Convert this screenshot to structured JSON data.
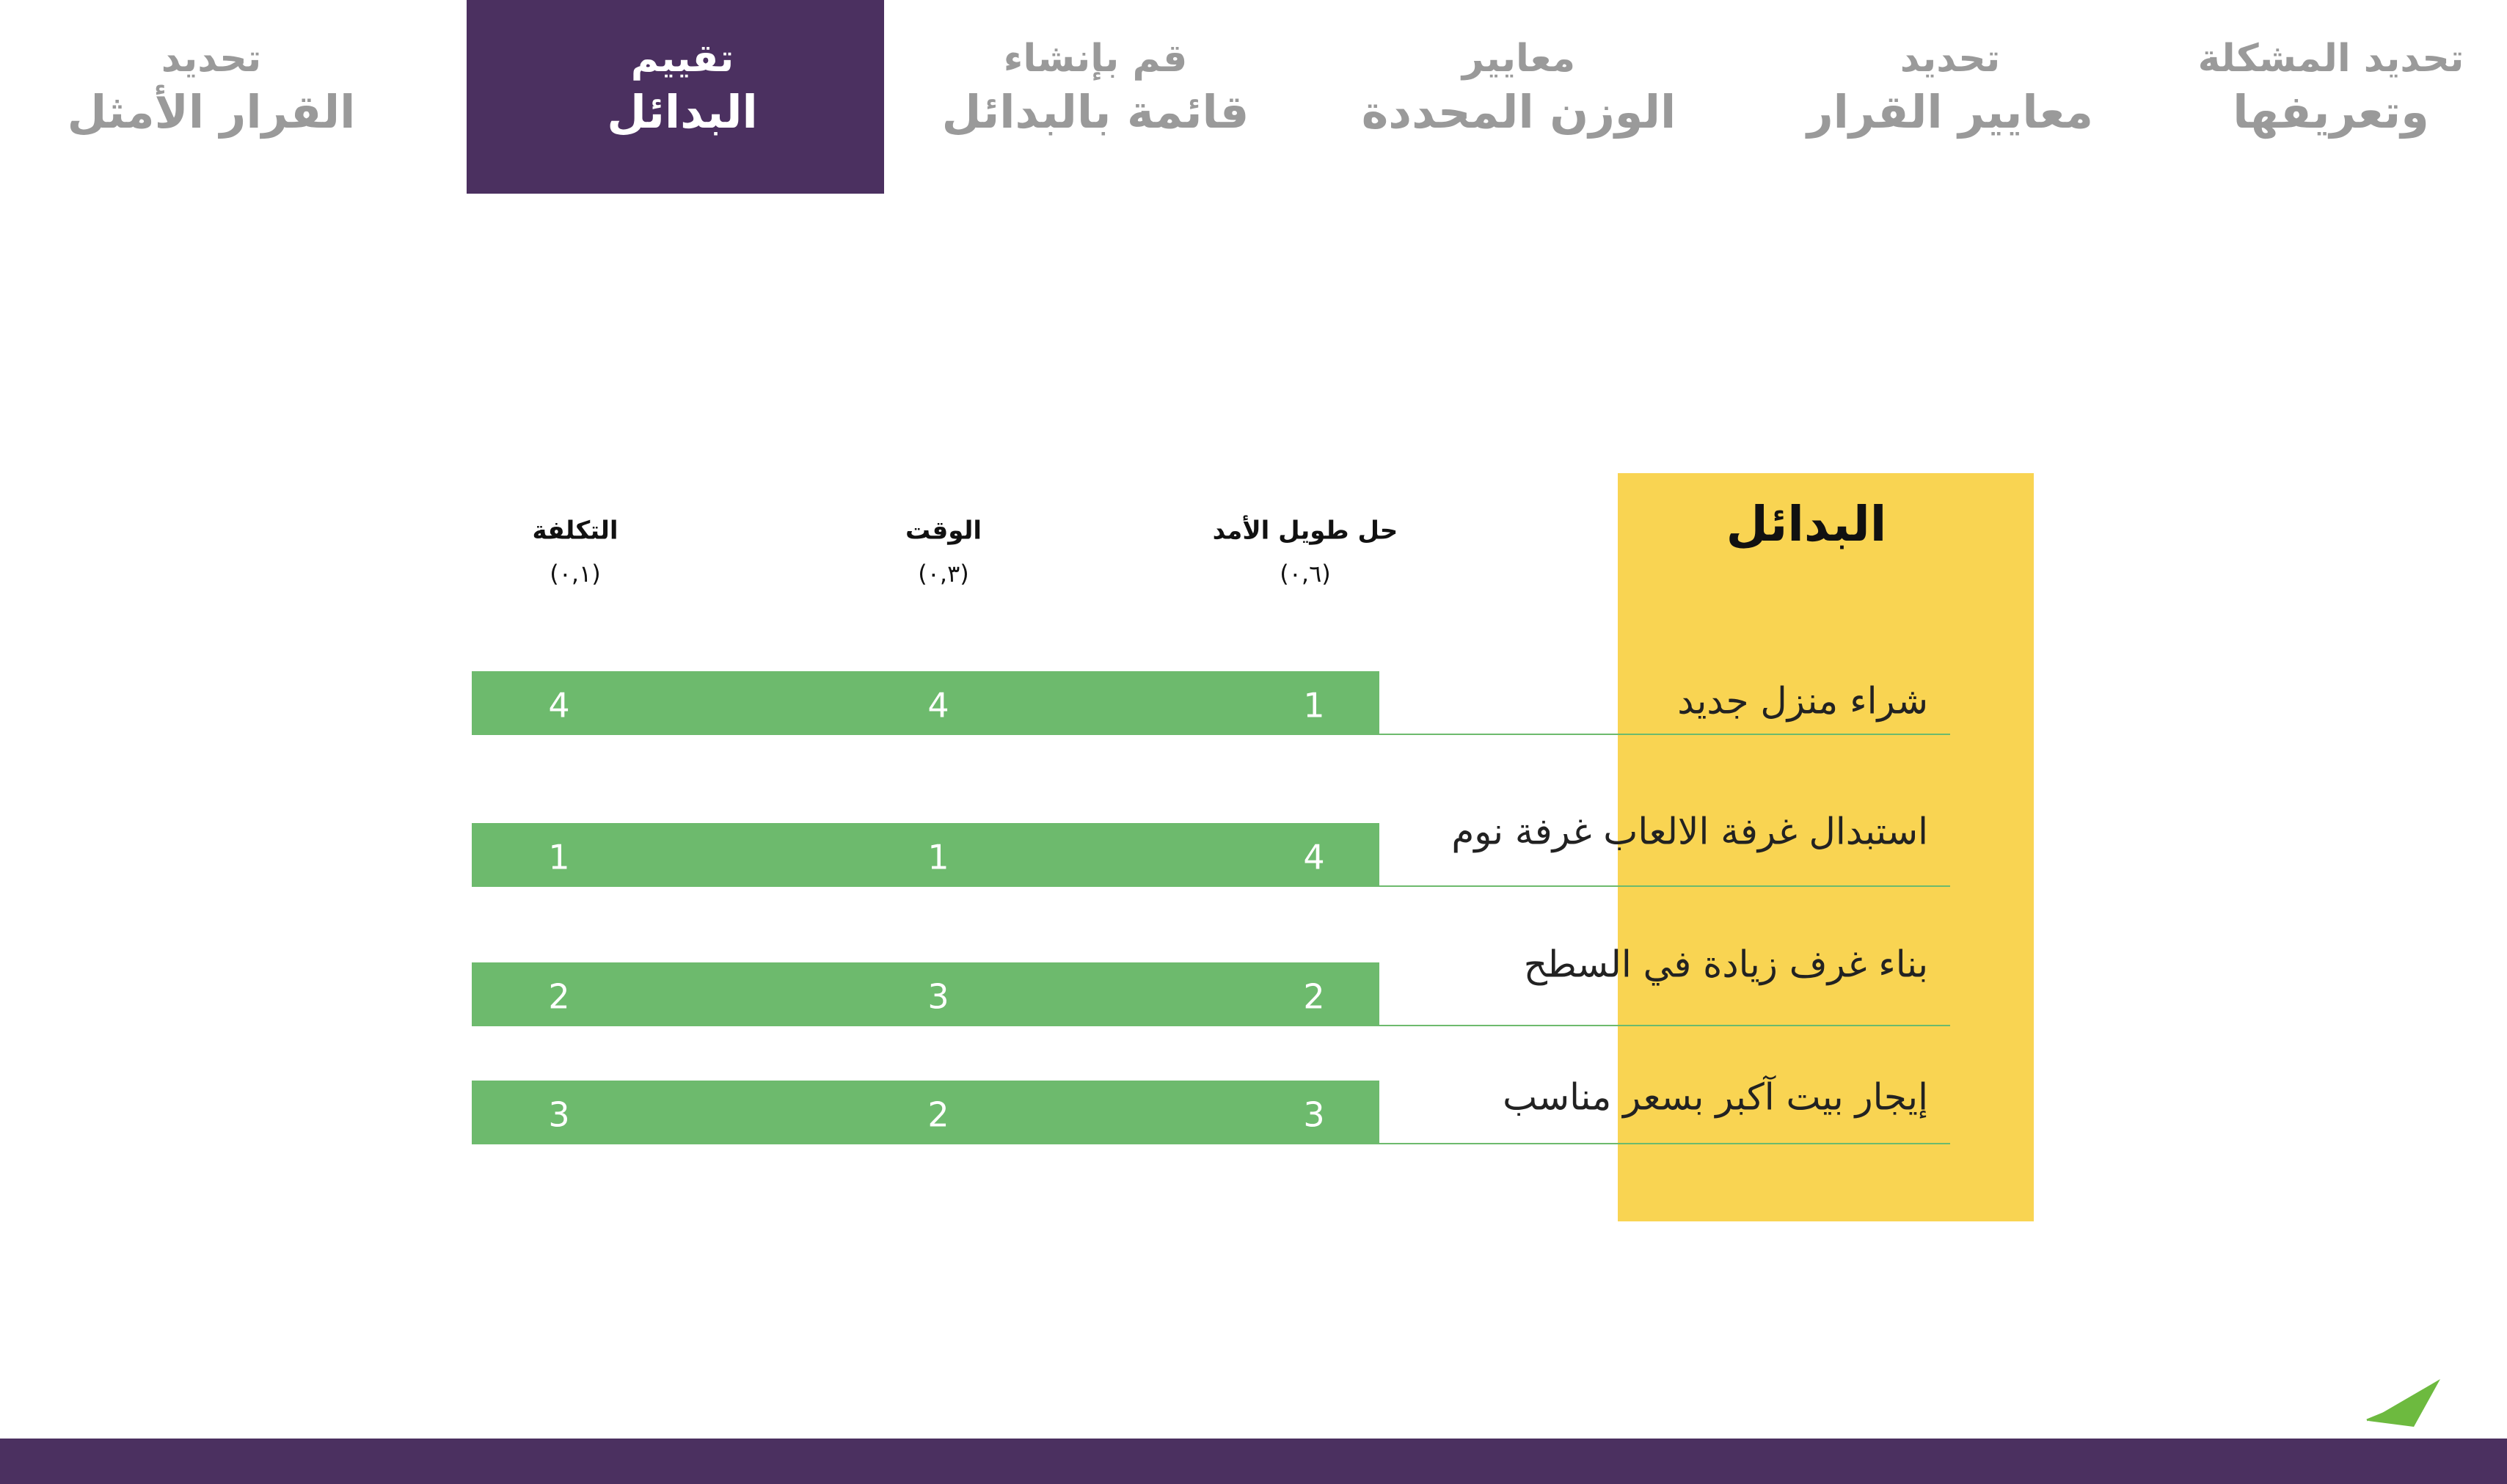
{
  "nav": {
    "steps": [
      [
        "تحديد المشكلة",
        "وتعريفها"
      ],
      [
        "تحديد",
        "معايير القرار"
      ],
      [
        "معايير",
        "الوزن المحددة"
      ],
      [
        "قم بإنشاء",
        "قائمة بالبدائل"
      ],
      [
        "تقييم",
        "البدائل"
      ],
      [
        "تحديد",
        "القرار الأمثل"
      ]
    ]
  },
  "table": {
    "title": "البدائل",
    "columns": [
      {
        "name": "حل طويل الأمد",
        "weight": "(٠,٦)"
      },
      {
        "name": "الوقت",
        "weight": "(٠,٣)"
      },
      {
        "name": "التكلفة",
        "weight": "(٠,١)"
      }
    ],
    "rows": [
      {
        "name": "شراء منزل جديد",
        "scores": [
          1,
          4,
          4
        ]
      },
      {
        "name": "استبدال غرفة الالعاب غرفة نوم",
        "scores": [
          4,
          1,
          1
        ]
      },
      {
        "name": "بناء غرف زيادة في السطح",
        "scores": [
          2,
          3,
          2
        ]
      },
      {
        "name": "إيجار بيت آكبر بسعر مناسب",
        "scores": [
          3,
          2,
          3
        ]
      }
    ]
  }
}
